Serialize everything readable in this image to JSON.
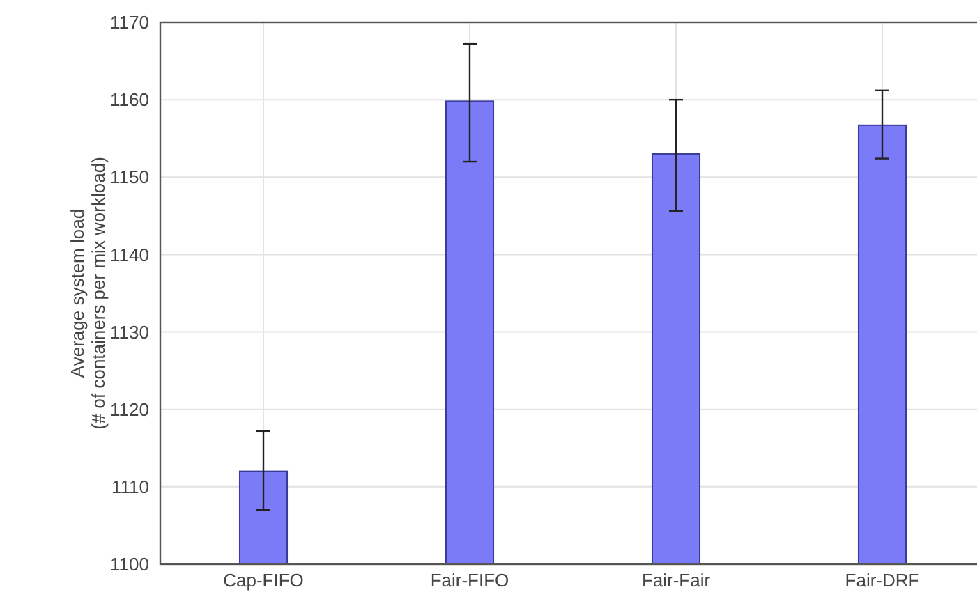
{
  "chart_data": {
    "type": "bar",
    "ylabel": "Average system load\n(# of containers per mix workload)",
    "categories": [
      "Cap-FIFO",
      "Fair-FIFO",
      "Fair-Fair",
      "Fair-DRF"
    ],
    "values": [
      1112,
      1159.8,
      1153,
      1156.7
    ],
    "color": "#7b7bf7",
    "errors": [
      [
        1107,
        1117.2
      ],
      [
        1152,
        1167.2
      ],
      [
        1145.6,
        1160
      ],
      [
        1152.4,
        1161.2
      ]
    ],
    "ylim": [
      1100,
      1170
    ],
    "yticks": [
      1100,
      1110,
      1120,
      1130,
      1140,
      1150,
      1160,
      1170
    ],
    "grid": true
  }
}
